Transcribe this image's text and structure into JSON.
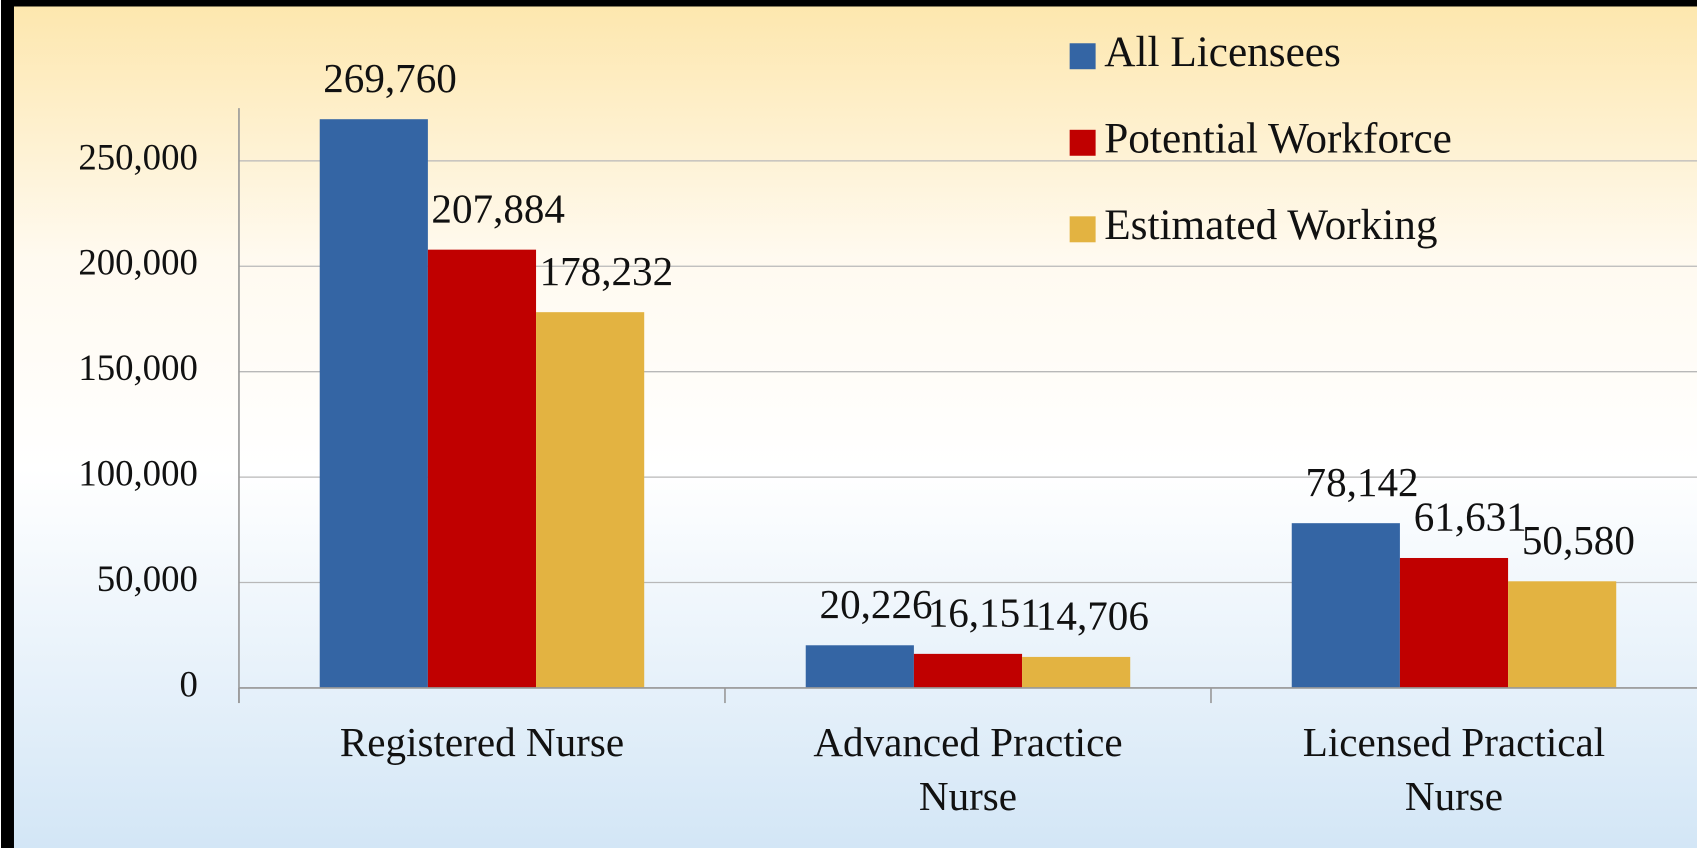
{
  "chart_data": {
    "type": "bar",
    "categories": [
      "Registered Nurse",
      "Advanced Practice Nurse",
      "Licensed Practical Nurse"
    ],
    "series": [
      {
        "name": "All Licensees",
        "color": "#3465a4",
        "values": [
          269760,
          20226,
          78142
        ],
        "value_labels": [
          "269,760",
          "20,226",
          "78,142"
        ]
      },
      {
        "name": "Potential Workforce",
        "color": "#c00000",
        "values": [
          207884,
          16151,
          61631
        ],
        "value_labels": [
          "207,884",
          "16,151",
          "61,631"
        ]
      },
      {
        "name": "Estimated Working",
        "color": "#e3b341",
        "values": [
          178232,
          14706,
          50580
        ],
        "value_labels": [
          "178,232",
          "14,706",
          "50,580"
        ]
      }
    ],
    "ylim": [
      0,
      275000
    ],
    "yticks": [
      0,
      {
        "value": 50000,
        "label": "50,000"
      },
      {
        "value": 100000,
        "label": "100,000"
      },
      {
        "value": 150000,
        "label": "150,000"
      },
      {
        "value": 200000,
        "label": "200,000"
      },
      {
        "value": 250000,
        "label": "250,000"
      }
    ],
    "grid": true,
    "legend": "top-right"
  }
}
